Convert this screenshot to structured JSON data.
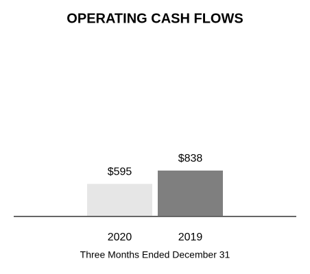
{
  "chart_data": {
    "type": "bar",
    "title": "OPERATING CASH FLOWS",
    "categories": [
      "2020",
      "2019"
    ],
    "values": [
      595,
      838
    ],
    "value_labels": [
      "$595",
      "$838"
    ],
    "colors": [
      "#e6e6e6",
      "#7f7f7f"
    ],
    "xlabel": "Three Months Ended December 31"
  }
}
